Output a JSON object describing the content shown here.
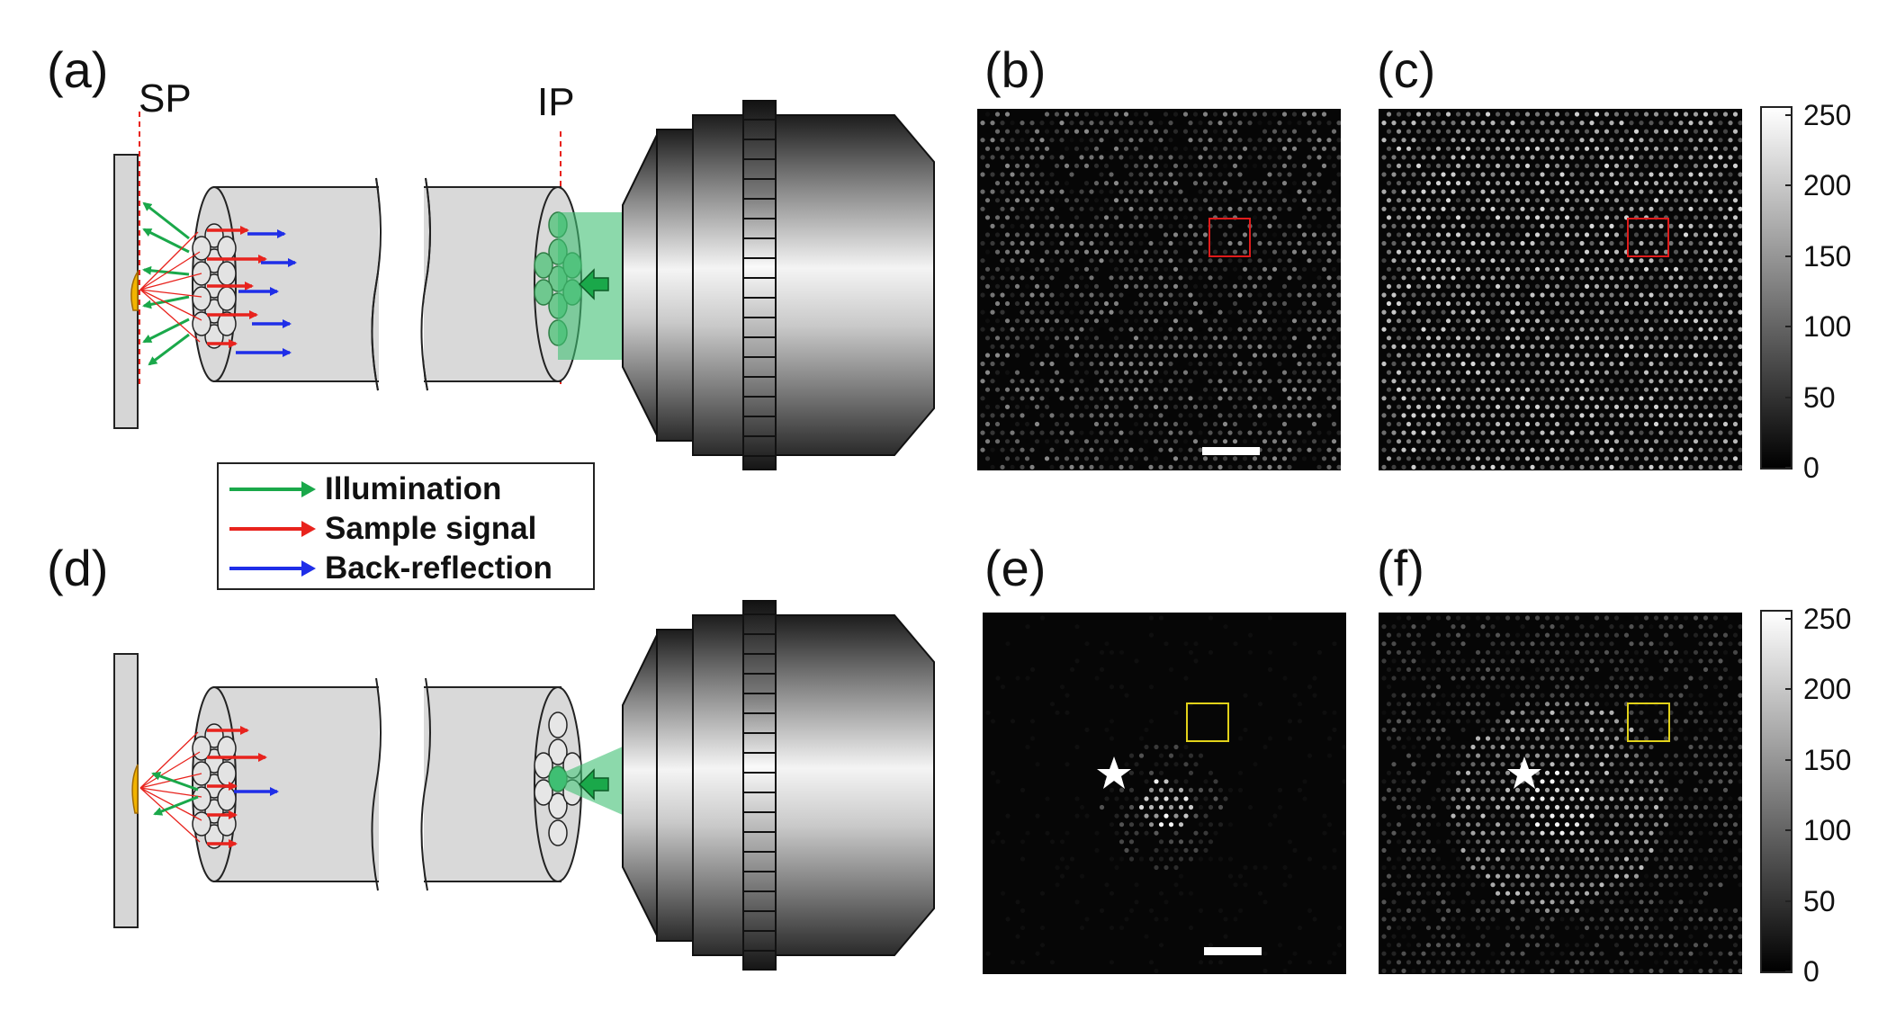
{
  "panels": {
    "a": "(a)",
    "b": "(b)",
    "c": "(c)",
    "d": "(d)",
    "e": "(e)",
    "f": "(f)"
  },
  "planes": {
    "sample_plane": "SP",
    "image_plane": "IP"
  },
  "legend": {
    "items": [
      {
        "label": "Illumination",
        "color": "#1aa84a"
      },
      {
        "label": "Sample signal",
        "color": "#e8231d"
      },
      {
        "label": "Back-reflection",
        "color": "#1f2ee8"
      }
    ]
  },
  "colorbar": {
    "ticks": [
      "250",
      "200",
      "150",
      "100",
      "50",
      "0"
    ],
    "range": [
      0,
      255
    ]
  },
  "roi_colors": {
    "top": "#e01b1b",
    "bottom": "#e2d21a"
  }
}
